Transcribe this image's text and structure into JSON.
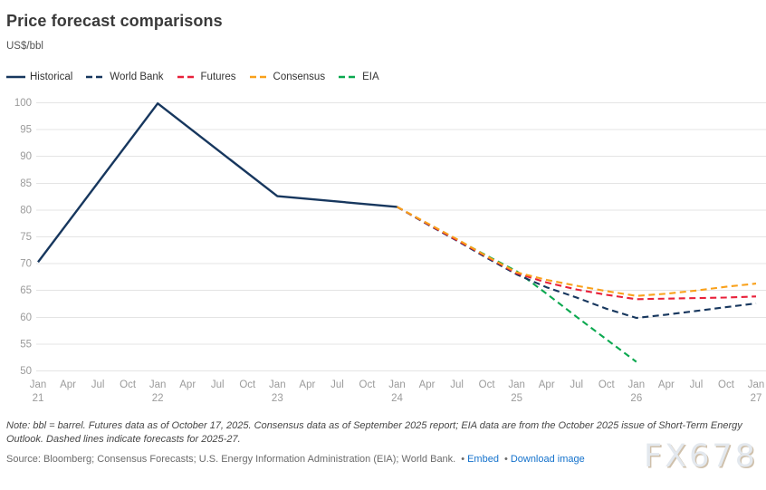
{
  "header": {
    "title": "Price forecast comparisons",
    "units": "US$/bbl"
  },
  "legend": [
    {
      "label": "Historical",
      "color": "#17375e",
      "style": "solid"
    },
    {
      "label": "World Bank",
      "color": "#17375e",
      "style": "dashed"
    },
    {
      "label": "Futures",
      "color": "#e8213a",
      "style": "dashed"
    },
    {
      "label": "Consensus",
      "color": "#f9a11b",
      "style": "dashed"
    },
    {
      "label": "EIA",
      "color": "#0aa84f",
      "style": "dashed"
    }
  ],
  "chart_data": {
    "type": "line",
    "title": "Price forecast comparisons",
    "ylabel": "US$/bbl",
    "y_axis": {
      "min": 50,
      "max": 100,
      "step": 5,
      "tick_labels": [
        "50",
        "55",
        "60",
        "65",
        "70",
        "75",
        "80",
        "85",
        "90",
        "95",
        "100"
      ]
    },
    "x_axis": {
      "unit": "quarter",
      "ticks": [
        {
          "month": "Jan",
          "year": "21"
        },
        {
          "month": "Apr"
        },
        {
          "month": "Jul"
        },
        {
          "month": "Oct"
        },
        {
          "month": "Jan",
          "year": "22"
        },
        {
          "month": "Apr"
        },
        {
          "month": "Jul"
        },
        {
          "month": "Oct"
        },
        {
          "month": "Jan",
          "year": "23"
        },
        {
          "month": "Apr"
        },
        {
          "month": "Jul"
        },
        {
          "month": "Oct"
        },
        {
          "month": "Jan",
          "year": "24"
        },
        {
          "month": "Apr"
        },
        {
          "month": "Jul"
        },
        {
          "month": "Oct"
        },
        {
          "month": "Jan",
          "year": "25"
        },
        {
          "month": "Apr"
        },
        {
          "month": "Jul"
        },
        {
          "month": "Oct"
        },
        {
          "month": "Jan",
          "year": "26"
        },
        {
          "month": "Apr"
        },
        {
          "month": "Jul"
        },
        {
          "month": "Oct"
        },
        {
          "month": "Jan",
          "year": "27"
        }
      ]
    },
    "grid": "horizontal",
    "legend_position": "top-left",
    "dashed_meaning": "forecasts for 2025-27",
    "series": [
      {
        "name": "EIA",
        "color": "#0aa84f",
        "style": "dashed",
        "points": [
          [
            12,
            80.5
          ],
          [
            13,
            77.4
          ],
          [
            14,
            74.4
          ],
          [
            15,
            71.4
          ],
          [
            16,
            68.5
          ],
          [
            17,
            64.3
          ],
          [
            18,
            60.0
          ],
          [
            19,
            55.8
          ],
          [
            20,
            51.6
          ]
        ]
      },
      {
        "name": "World Bank",
        "color": "#17375e",
        "style": "dashed",
        "points": [
          [
            12,
            80.5
          ],
          [
            13,
            77.3
          ],
          [
            14,
            74.2
          ],
          [
            15,
            71.0
          ],
          [
            16,
            67.9
          ],
          [
            17,
            65.5
          ],
          [
            18,
            63.6
          ],
          [
            19,
            61.5
          ],
          [
            20,
            59.8
          ],
          [
            21,
            60.4
          ],
          [
            22,
            61.1
          ],
          [
            23,
            61.8
          ],
          [
            24,
            62.5
          ]
        ]
      },
      {
        "name": "Futures",
        "color": "#e8213a",
        "style": "dashed",
        "points": [
          [
            12,
            80.5
          ],
          [
            13,
            77.4
          ],
          [
            14,
            74.3
          ],
          [
            15,
            71.2
          ],
          [
            16,
            68.1
          ],
          [
            17,
            66.4
          ],
          [
            18,
            65.1
          ],
          [
            19,
            64.1
          ],
          [
            20,
            63.3
          ],
          [
            21,
            63.4
          ],
          [
            22,
            63.5
          ],
          [
            23,
            63.6
          ],
          [
            24,
            63.8
          ]
        ]
      },
      {
        "name": "Consensus",
        "color": "#f9a11b",
        "style": "dashed",
        "points": [
          [
            12,
            80.5
          ],
          [
            13,
            77.5
          ],
          [
            14,
            74.5
          ],
          [
            15,
            71.3
          ],
          [
            16,
            68.3
          ],
          [
            17,
            66.9
          ],
          [
            18,
            65.8
          ],
          [
            19,
            64.8
          ],
          [
            20,
            63.9
          ],
          [
            21,
            64.3
          ],
          [
            22,
            64.9
          ],
          [
            23,
            65.6
          ],
          [
            24,
            66.2
          ]
        ]
      },
      {
        "name": "Historical",
        "color": "#17375e",
        "style": "solid",
        "points": [
          [
            0,
            70.2
          ],
          [
            4,
            99.8
          ],
          [
            8,
            82.5
          ],
          [
            12,
            80.5
          ]
        ]
      }
    ]
  },
  "footer": {
    "note": "Note: bbl = barrel. Futures data as of October 17, 2025. Consensus data as of September 2025 report; EIA data are from the October 2025 issue of Short-Term Energy Outlook. Dashed lines indicate forecasts for 2025-27.",
    "source": "Source: Bloomberg; Consensus Forecasts; U.S. Energy Information Administration (EIA); World Bank.",
    "links": [
      {
        "label": "Embed"
      },
      {
        "label": "Download image"
      }
    ],
    "watermark": "FX678"
  }
}
